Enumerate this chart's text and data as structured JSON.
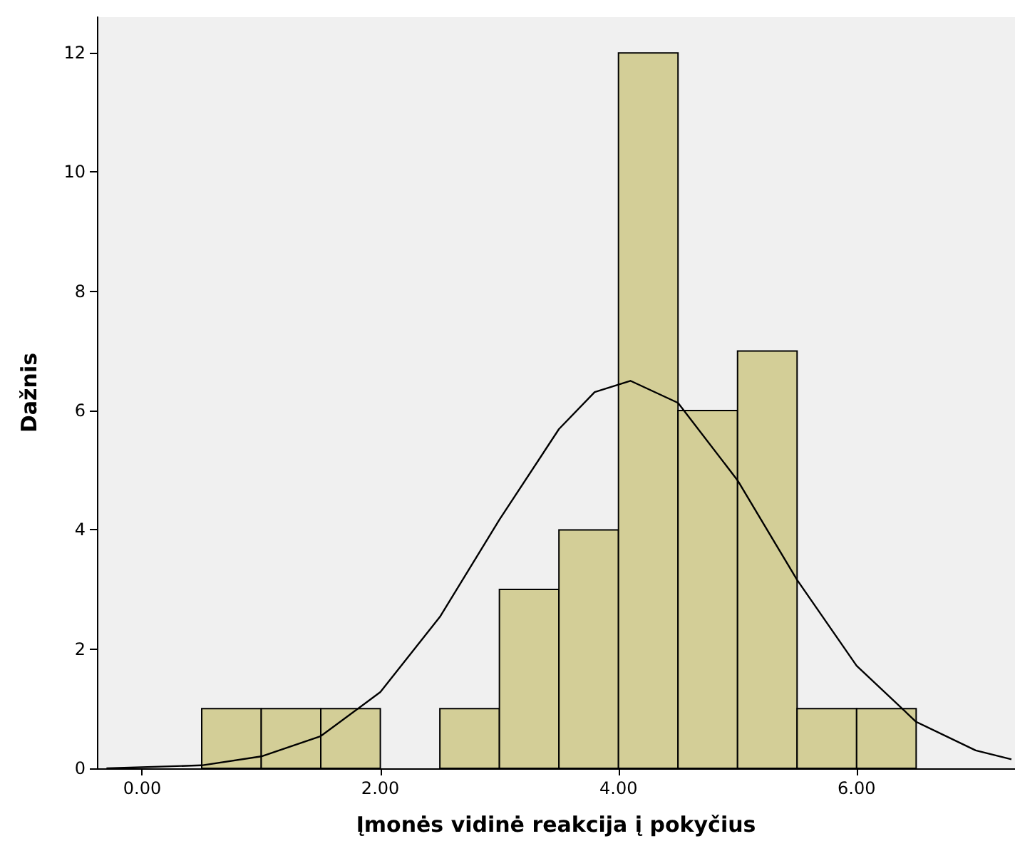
{
  "chart_data": {
    "type": "histogram",
    "xlabel": "Įmonės vidinė reakcija į pokyčius",
    "ylabel": "Dažnis",
    "bins": [
      0.5,
      1,
      1.5,
      2,
      2.5,
      3,
      3.5,
      4,
      4.5,
      5,
      5.5,
      6,
      6.5
    ],
    "values": [
      1,
      1,
      1,
      0,
      1,
      3,
      4,
      12,
      6,
      7,
      1,
      1
    ],
    "color": "#d3ce97",
    "series": [
      {
        "type": "line",
        "color": "#000000",
        "x": [
          -0.3,
          0.5,
          1,
          1.5,
          2,
          2.5,
          3,
          3.5,
          3.8,
          4.1,
          4.5,
          5,
          5.5,
          6,
          6.5,
          7,
          7.3
        ],
        "values": [
          0,
          0.05,
          0.2,
          0.54,
          1.28,
          2.54,
          4.17,
          5.69,
          6.31,
          6.5,
          6.13,
          4.83,
          3.16,
          1.72,
          0.78,
          0.3,
          0.15
        ]
      }
    ],
    "xlim": [
      -0.38,
      7.33
    ],
    "xticks": [
      {
        "value": 0,
        "label": "0.00"
      },
      {
        "value": 2,
        "label": "2.00"
      },
      {
        "value": 4,
        "label": "4.00"
      },
      {
        "value": 6,
        "label": "6.00"
      }
    ],
    "ylim": [
      0,
      12.6
    ],
    "yticks": [
      0,
      2,
      4,
      6,
      8,
      10,
      12
    ],
    "grid": false
  }
}
